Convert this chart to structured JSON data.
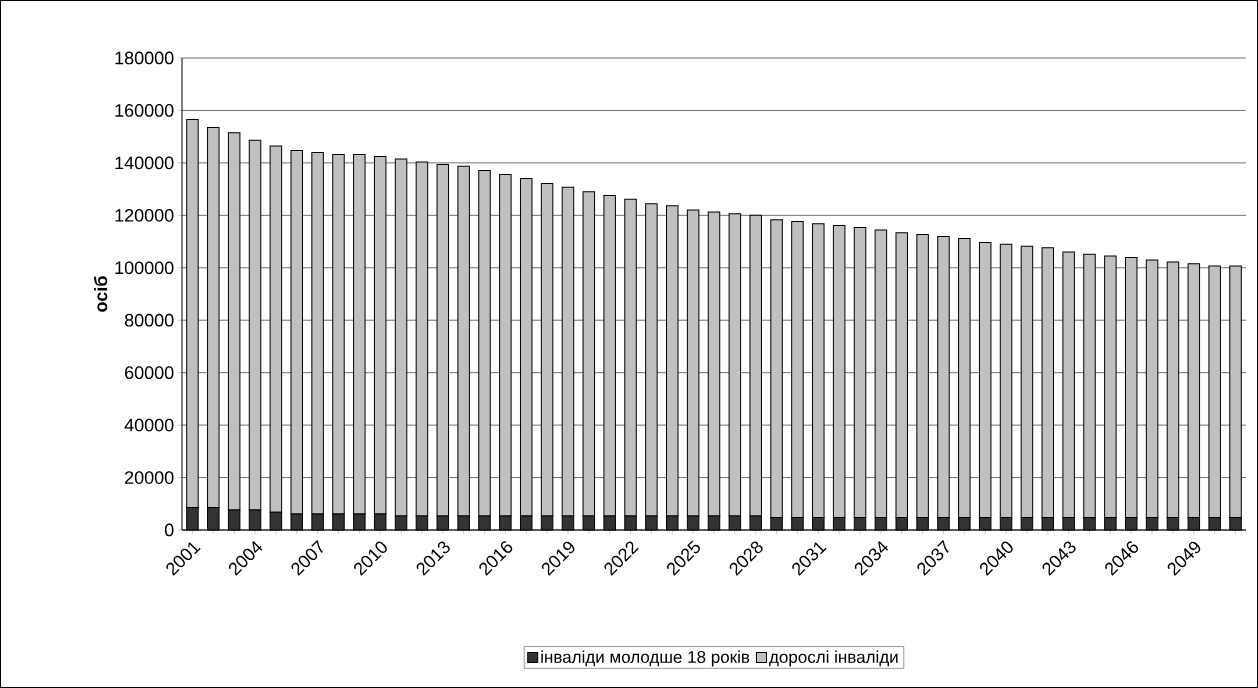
{
  "chart_data": {
    "type": "bar",
    "stacked": true,
    "ylabel": "осіб",
    "categories": [
      "2001",
      null,
      null,
      "2004",
      null,
      null,
      "2007",
      null,
      null,
      "2010",
      null,
      null,
      "2013",
      null,
      null,
      "2016",
      null,
      null,
      "2019",
      null,
      null,
      "2022",
      null,
      null,
      "2025",
      null,
      null,
      "2028",
      null,
      null,
      "2031",
      null,
      null,
      "2034",
      null,
      null,
      "2037",
      null,
      null,
      "2040",
      null,
      null,
      "2043",
      null,
      null,
      "2046",
      null,
      null,
      "2049",
      null,
      null
    ],
    "series": [
      {
        "name": "інваліди молодше 18 років",
        "color": "#333333",
        "values": [
          8600,
          8600,
          7600,
          7600,
          6800,
          6100,
          6100,
          6100,
          6100,
          6100,
          5300,
          5300,
          5300,
          5300,
          5300,
          5300,
          5300,
          5300,
          5300,
          5300,
          5300,
          5300,
          5300,
          5300,
          5300,
          5300,
          5300,
          5300,
          4800,
          4800,
          4800,
          4800,
          4800,
          4800,
          4800,
          4800,
          4800,
          4800,
          4800,
          4800,
          4800,
          4800,
          4800,
          4800,
          4800,
          4800,
          4800,
          4800,
          4800,
          4800,
          4800
        ]
      },
      {
        "name": "дорослі інваліди",
        "color": "#c0c0c0",
        "values": [
          147900,
          144900,
          143900,
          141000,
          139600,
          138600,
          137900,
          137100,
          137100,
          136300,
          136200,
          135000,
          134100,
          133400,
          131800,
          130300,
          128700,
          126800,
          125400,
          123700,
          122300,
          120800,
          119100,
          118400,
          116700,
          116000,
          115300,
          114700,
          113500,
          112800,
          112000,
          111300,
          110600,
          109600,
          108600,
          107900,
          107100,
          106400,
          104800,
          104200,
          103400,
          102800,
          101200,
          100400,
          99700,
          99100,
          98200,
          97400,
          96700,
          95900,
          95900
        ]
      }
    ],
    "ylim": [
      0,
      180000
    ],
    "yticks": [
      0,
      20000,
      40000,
      60000,
      80000,
      100000,
      120000,
      140000,
      160000,
      180000
    ],
    "grid": "y",
    "legend": "bottom"
  }
}
